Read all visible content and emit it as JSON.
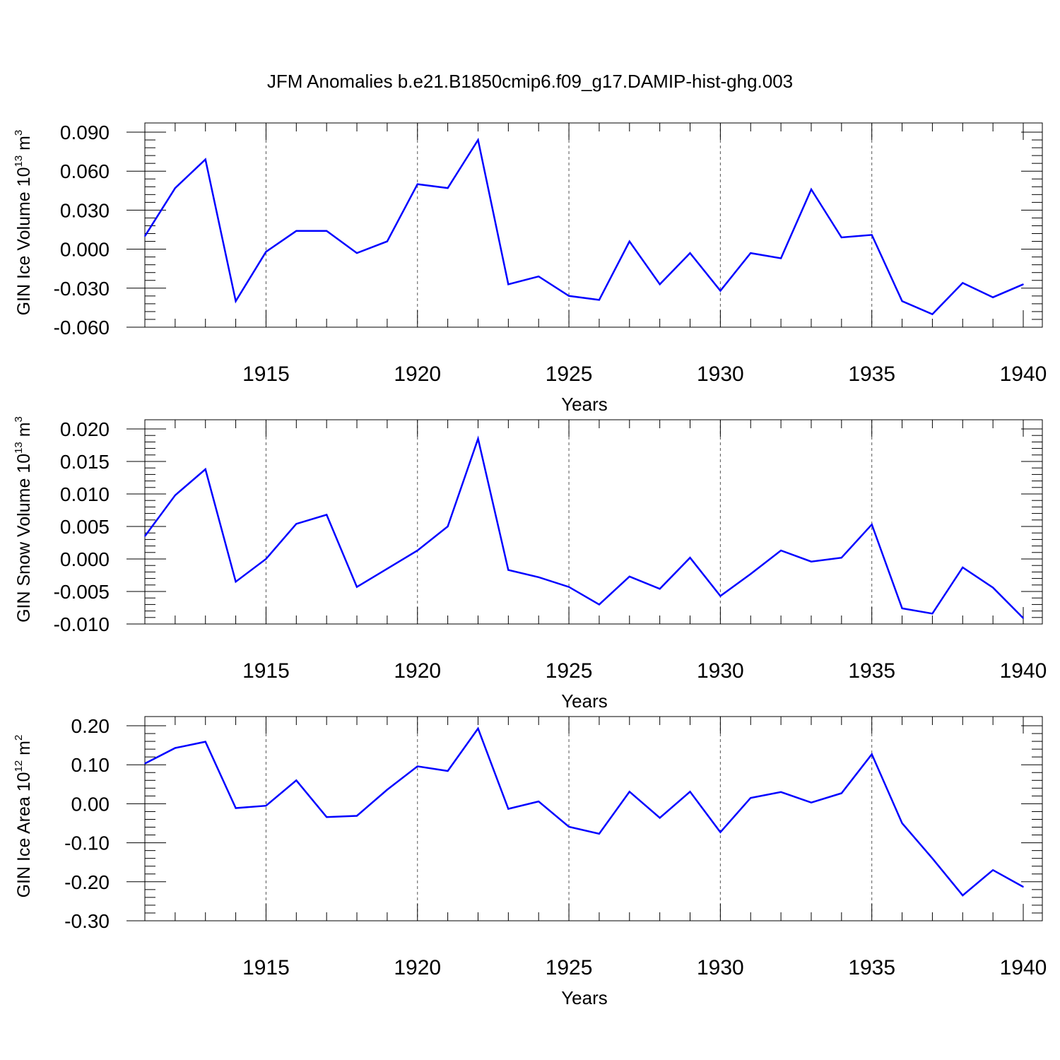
{
  "chart_data": {
    "title": "JFM Anomalies b.e21.B1850cmip6.f09_g17.DAMIP-hist-ghg.003",
    "x": [
      1911,
      1912,
      1913,
      1914,
      1915,
      1916,
      1917,
      1918,
      1919,
      1920,
      1921,
      1922,
      1923,
      1924,
      1925,
      1926,
      1927,
      1928,
      1929,
      1930,
      1931,
      1932,
      1933,
      1934,
      1935,
      1936,
      1937,
      1938,
      1939,
      1940
    ],
    "xlim": [
      1911,
      1940
    ],
    "xticks": [
      1915,
      1920,
      1925,
      1930,
      1935,
      1940
    ],
    "panels": [
      {
        "type": "line",
        "xlabel": "Years",
        "ylabel": {
          "main": "GIN Ice Volume 10",
          "exp": "13",
          "unit": " m",
          "unit_exp": "3"
        },
        "ylim": [
          -0.06,
          0.09
        ],
        "yticks": [
          "0.090",
          "0.060",
          "0.030",
          "0.000",
          "-0.030",
          "-0.060"
        ],
        "ytick_values": [
          0.09,
          0.06,
          0.03,
          0.0,
          -0.03,
          -0.06
        ],
        "values": [
          0.01,
          0.047,
          0.069,
          -0.04,
          -0.002,
          0.014,
          0.014,
          -0.003,
          0.006,
          0.05,
          0.047,
          0.084,
          -0.027,
          -0.021,
          -0.036,
          -0.039,
          0.006,
          -0.027,
          -0.003,
          -0.032,
          -0.003,
          -0.007,
          0.046,
          0.009,
          0.011,
          -0.04,
          -0.05,
          -0.026,
          -0.037,
          -0.027
        ]
      },
      {
        "type": "line",
        "xlabel": "Years",
        "ylabel": {
          "main": "GIN Snow Volume 10",
          "exp": "13",
          "unit": " m",
          "unit_exp": "3"
        },
        "ylim": [
          -0.01,
          0.02
        ],
        "yticks": [
          "0.020",
          "0.015",
          "0.010",
          "0.005",
          "0.000",
          "-0.005",
          "-0.010"
        ],
        "ytick_values": [
          0.02,
          0.015,
          0.01,
          0.005,
          0.0,
          -0.005,
          -0.01
        ],
        "values": [
          0.0035,
          0.0098,
          0.0138,
          -0.0035,
          0.0,
          0.0054,
          0.0068,
          -0.0043,
          -0.0015,
          0.0013,
          0.005,
          0.0185,
          -0.0017,
          -0.0028,
          -0.0043,
          -0.007,
          -0.0027,
          -0.0046,
          0.0002,
          -0.0057,
          -0.0023,
          0.0013,
          -0.0004,
          0.0002,
          0.0053,
          -0.0076,
          -0.0084,
          -0.0013,
          -0.0044,
          -0.0091
        ]
      },
      {
        "type": "line",
        "xlabel": "Years",
        "ylabel": {
          "main": "GIN Ice Area 10",
          "exp": "12",
          "unit": " m",
          "unit_exp": "2"
        },
        "ylim": [
          -0.3,
          0.2
        ],
        "yticks": [
          "0.20",
          "0.10",
          "0.00",
          "-0.10",
          "-0.20",
          "-0.30"
        ],
        "ytick_values": [
          0.2,
          0.1,
          0.0,
          -0.1,
          -0.2,
          -0.3
        ],
        "values": [
          0.103,
          0.143,
          0.159,
          -0.011,
          -0.005,
          0.06,
          -0.034,
          -0.031,
          0.036,
          0.096,
          0.084,
          0.193,
          -0.013,
          0.006,
          -0.059,
          -0.077,
          0.031,
          -0.036,
          0.031,
          -0.073,
          0.015,
          0.03,
          0.003,
          0.027,
          0.127,
          -0.05,
          -0.14,
          -0.235,
          -0.17,
          -0.213
        ]
      }
    ]
  },
  "style": {
    "line_color": "#0000ff",
    "grid_color": "#555555",
    "axis_color": "#000000"
  }
}
